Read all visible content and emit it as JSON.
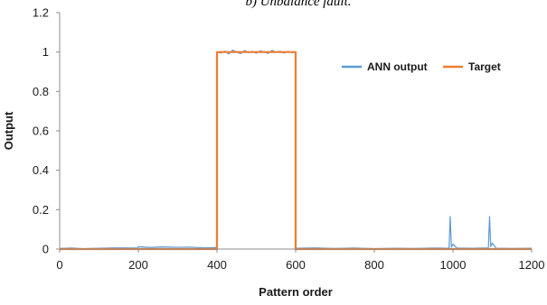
{
  "chart_data": {
    "type": "line",
    "title": "b) Unbalance fault.",
    "xlabel": "Pattern order",
    "ylabel": "Output",
    "xlim": [
      0,
      1200
    ],
    "ylim": [
      0,
      1.2
    ],
    "x_ticks": [
      "0",
      "200",
      "400",
      "600",
      "800",
      "1000",
      "1200"
    ],
    "y_ticks": [
      "0",
      "0.2",
      "0.4",
      "0.6",
      "0.8",
      "1",
      "1.2"
    ],
    "grid": false,
    "legend_position": "top-right",
    "series": [
      {
        "name": "ANN output",
        "color": "#5b9bd5",
        "points": [
          [
            0,
            0.003
          ],
          [
            30,
            0.005
          ],
          [
            60,
            0.002
          ],
          [
            100,
            0.004
          ],
          [
            150,
            0.006
          ],
          [
            199,
            0.005
          ],
          [
            200,
            0.012
          ],
          [
            230,
            0.008
          ],
          [
            260,
            0.011
          ],
          [
            300,
            0.009
          ],
          [
            330,
            0.01
          ],
          [
            370,
            0.006
          ],
          [
            399,
            0.008
          ],
          [
            400,
            1.0
          ],
          [
            410,
            0.995
          ],
          [
            420,
            1.005
          ],
          [
            430,
            0.99
          ],
          [
            440,
            1.01
          ],
          [
            450,
            1.0
          ],
          [
            460,
            0.992
          ],
          [
            470,
            1.008
          ],
          [
            480,
            0.997
          ],
          [
            490,
            1.003
          ],
          [
            500,
            0.994
          ],
          [
            510,
            1.006
          ],
          [
            520,
            1.0
          ],
          [
            530,
            0.993
          ],
          [
            540,
            1.009
          ],
          [
            550,
            0.998
          ],
          [
            560,
            1.004
          ],
          [
            570,
            0.995
          ],
          [
            580,
            1.002
          ],
          [
            590,
            0.997
          ],
          [
            599,
            1.0
          ],
          [
            600,
            0.004
          ],
          [
            650,
            0.006
          ],
          [
            700,
            0.003
          ],
          [
            750,
            0.005
          ],
          [
            800,
            0.002
          ],
          [
            850,
            0.004
          ],
          [
            900,
            0.003
          ],
          [
            950,
            0.005
          ],
          [
            990,
            0.004
          ],
          [
            993,
            0.165
          ],
          [
            996,
            0.01
          ],
          [
            1000,
            0.025
          ],
          [
            1010,
            0.005
          ],
          [
            1050,
            0.004
          ],
          [
            1090,
            0.006
          ],
          [
            1093,
            0.165
          ],
          [
            1096,
            0.012
          ],
          [
            1100,
            0.03
          ],
          [
            1110,
            0.004
          ],
          [
            1150,
            0.003
          ],
          [
            1200,
            0.004
          ]
        ]
      },
      {
        "name": "Target",
        "color": "#ed7d31",
        "points": [
          [
            0,
            0
          ],
          [
            400,
            0
          ],
          [
            400,
            1
          ],
          [
            600,
            1
          ],
          [
            600,
            0
          ],
          [
            1200,
            0
          ]
        ]
      }
    ]
  }
}
